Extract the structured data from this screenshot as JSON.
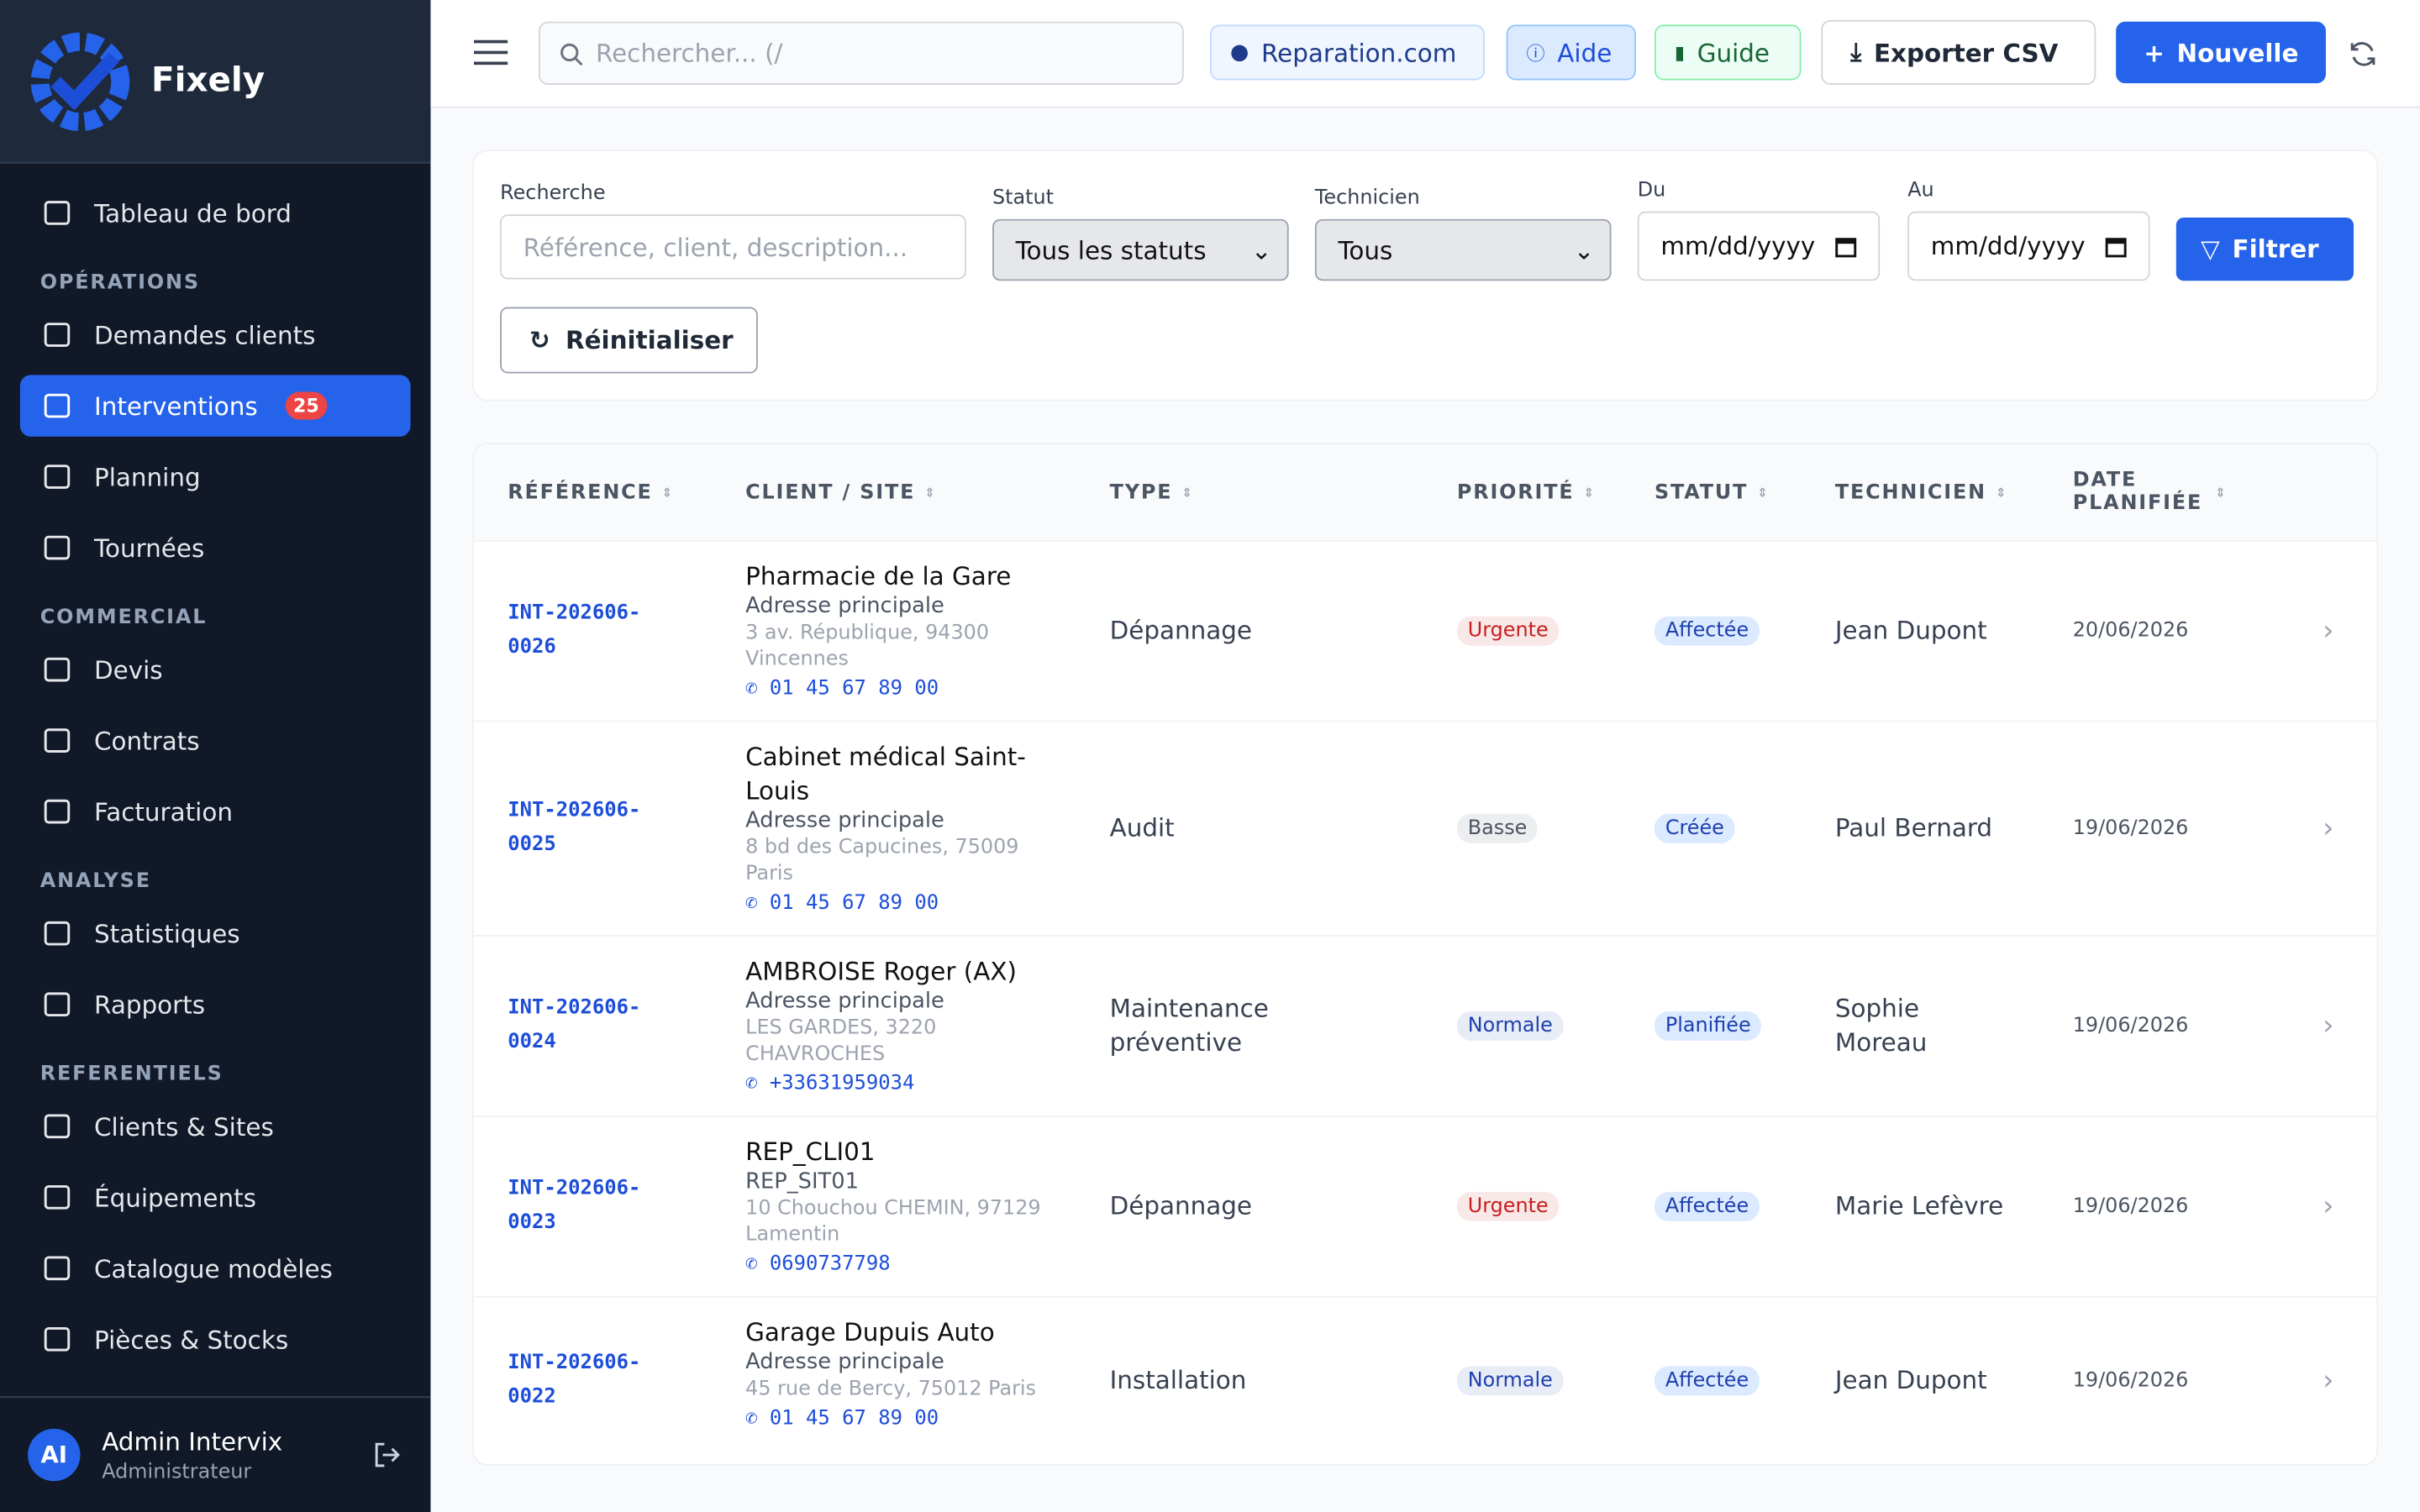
{
  "sidebar": {
    "brand": "Fixely",
    "top_item": "Tableau de bord",
    "sections": [
      {
        "title": "OPÉRATIONS",
        "items": [
          {
            "label": "Demandes clients"
          },
          {
            "label": "Interventions",
            "badge": 25,
            "active": true
          },
          {
            "label": "Planning"
          },
          {
            "label": "Tournées"
          }
        ]
      },
      {
        "title": "COMMERCIAL",
        "items": [
          {
            "label": "Devis"
          },
          {
            "label": "Contrats"
          },
          {
            "label": "Facturation"
          }
        ]
      },
      {
        "title": "ANALYSE",
        "items": [
          {
            "label": "Statistiques"
          },
          {
            "label": "Rapports"
          }
        ]
      },
      {
        "title": "REFERENTIELS",
        "items": [
          {
            "label": "Clients & Sites"
          },
          {
            "label": "Équipements"
          },
          {
            "label": "Catalogue modèles"
          },
          {
            "label": "Pièces & Stocks"
          }
        ]
      }
    ],
    "user": {
      "initials": "AI",
      "name": "Admin Intervix",
      "role": "Administrateur"
    }
  },
  "topbar": {
    "search": "Rechercher... (/",
    "buttons": [
      "Reparation.com",
      "Aide",
      "Guide",
      "Exporter CSV",
      "Nouvelle"
    ]
  },
  "filters": {
    "search_label": "Recherche",
    "search_placeholder": "Référence, client, description...",
    "status_label": "Statut",
    "status_value": "Tous les statuts",
    "tech_label": "Technicien",
    "tech_value": "Tous",
    "from_label": "Du",
    "from_value": "mm/dd/yyyy",
    "to_label": "Au",
    "to_value": "mm/dd/yyyy",
    "apply": "Filtrer",
    "reset": "Réinitialiser"
  },
  "table": {
    "columns": [
      "RÉFÉRENCE",
      "CLIENT / SITE",
      "TYPE",
      "PRIORITÉ",
      "STATUT",
      "TECHNICIEN",
      "DATE PLANIFIÉE"
    ],
    "rows": [
      {
        "ref": "INT-202606-0026",
        "client": "Pharmacie de la Gare",
        "site": "Adresse principale",
        "address": "3 av. République, 94300 Vincennes",
        "phone": "01 45 67 89 00",
        "type": "Dépannage",
        "priority": "Urgente",
        "priority_color": "#c81e1e",
        "status": "Affectée",
        "technician": "Jean Dupont",
        "date": "20/06/2026"
      },
      {
        "ref": "INT-202606-0025",
        "client": "Cabinet médical Saint-Louis",
        "site": "Adresse principale",
        "address": "8 bd des Capucines, 75009 Paris",
        "phone": "01 45 67 89 00",
        "type": "Audit",
        "priority": "Basse",
        "priority_color": "#4b5563",
        "status": "Créée",
        "technician": "Paul Bernard",
        "date": "19/06/2026"
      },
      {
        "ref": "INT-202606-0024",
        "client": "AMBROISE Roger (AX)",
        "site": "Adresse principale",
        "address": "LES GARDES, 3220 CHAVROCHES",
        "phone": "+33631959034",
        "type": "Maintenance préventive",
        "priority": "Normale",
        "priority_color": "#1e40af",
        "status": "Planifiée",
        "technician": "Sophie Moreau",
        "date": "19/06/2026"
      },
      {
        "ref": "INT-202606-0023",
        "client": "REP_CLI01",
        "site": "REP_SIT01",
        "address": "10 Chouchou CHEMIN, 97129 Lamentin",
        "phone": "0690737798",
        "type": "Dépannage",
        "priority": "Urgente",
        "priority_color": "#c81e1e",
        "status": "Affectée",
        "technician": "Marie Lefèvre",
        "date": "19/06/2026"
      },
      {
        "ref": "INT-202606-0022",
        "client": "Garage Dupuis Auto",
        "site": "Adresse principale",
        "address": "45 rue de Bercy, 75012 Paris",
        "phone": "01 45 67 89 00",
        "type": "Installation",
        "priority": "Normale",
        "priority_color": "#1e40af",
        "status": "Affectée",
        "technician": "Jean Dupont",
        "date": "19/06/2026"
      }
    ]
  }
}
